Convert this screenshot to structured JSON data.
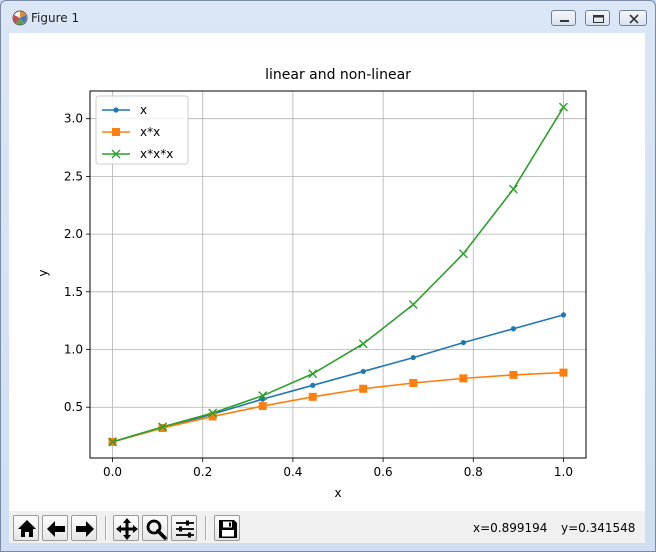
{
  "window": {
    "title": "Figure 1",
    "icon": "matplotlib-logo-icon",
    "controls": [
      "minimize-icon",
      "maximize-icon",
      "close-icon"
    ]
  },
  "chart_data": {
    "type": "line",
    "title": "linear and non-linear",
    "xlabel": "x",
    "ylabel": "y",
    "xlim": [
      -0.05,
      1.05
    ],
    "ylim": [
      0.06,
      3.24
    ],
    "xticks": [
      "0.0",
      "0.2",
      "0.4",
      "0.6",
      "0.8",
      "1.0"
    ],
    "yticks": [
      "0.5",
      "1.0",
      "1.5",
      "2.0",
      "2.5",
      "3.0"
    ],
    "grid": true,
    "legend_position": "top-left",
    "x": [
      0.0,
      0.111,
      0.222,
      0.333,
      0.444,
      0.556,
      0.667,
      0.778,
      0.889,
      1.0
    ],
    "series": [
      {
        "name": "x",
        "marker": "dot",
        "color": "#1f77b4",
        "values": [
          0.2,
          0.32,
          0.44,
          0.57,
          0.69,
          0.81,
          0.93,
          1.06,
          1.18,
          1.3
        ]
      },
      {
        "name": "x*x",
        "marker": "square",
        "color": "#ff7f0e",
        "values": [
          0.2,
          0.32,
          0.42,
          0.51,
          0.59,
          0.66,
          0.71,
          0.75,
          0.78,
          0.8
        ]
      },
      {
        "name": "x*x*x",
        "marker": "x",
        "color": "#2ca02c",
        "values": [
          0.2,
          0.33,
          0.45,
          0.6,
          0.79,
          1.05,
          1.39,
          1.83,
          2.39,
          3.1
        ]
      }
    ]
  },
  "toolbar": {
    "buttons": [
      {
        "name": "home-button",
        "icon": "home-icon"
      },
      {
        "name": "back-button",
        "icon": "arrow-left-icon"
      },
      {
        "name": "forward-button",
        "icon": "arrow-right-icon"
      },
      {
        "name": "pan-button",
        "icon": "move-icon"
      },
      {
        "name": "zoom-button",
        "icon": "magnifier-icon"
      },
      {
        "name": "configure-subplots-button",
        "icon": "sliders-icon"
      },
      {
        "name": "save-button",
        "icon": "floppy-disk-icon"
      }
    ],
    "coord_x": "x=0.899194",
    "coord_y": "y=0.341548"
  }
}
